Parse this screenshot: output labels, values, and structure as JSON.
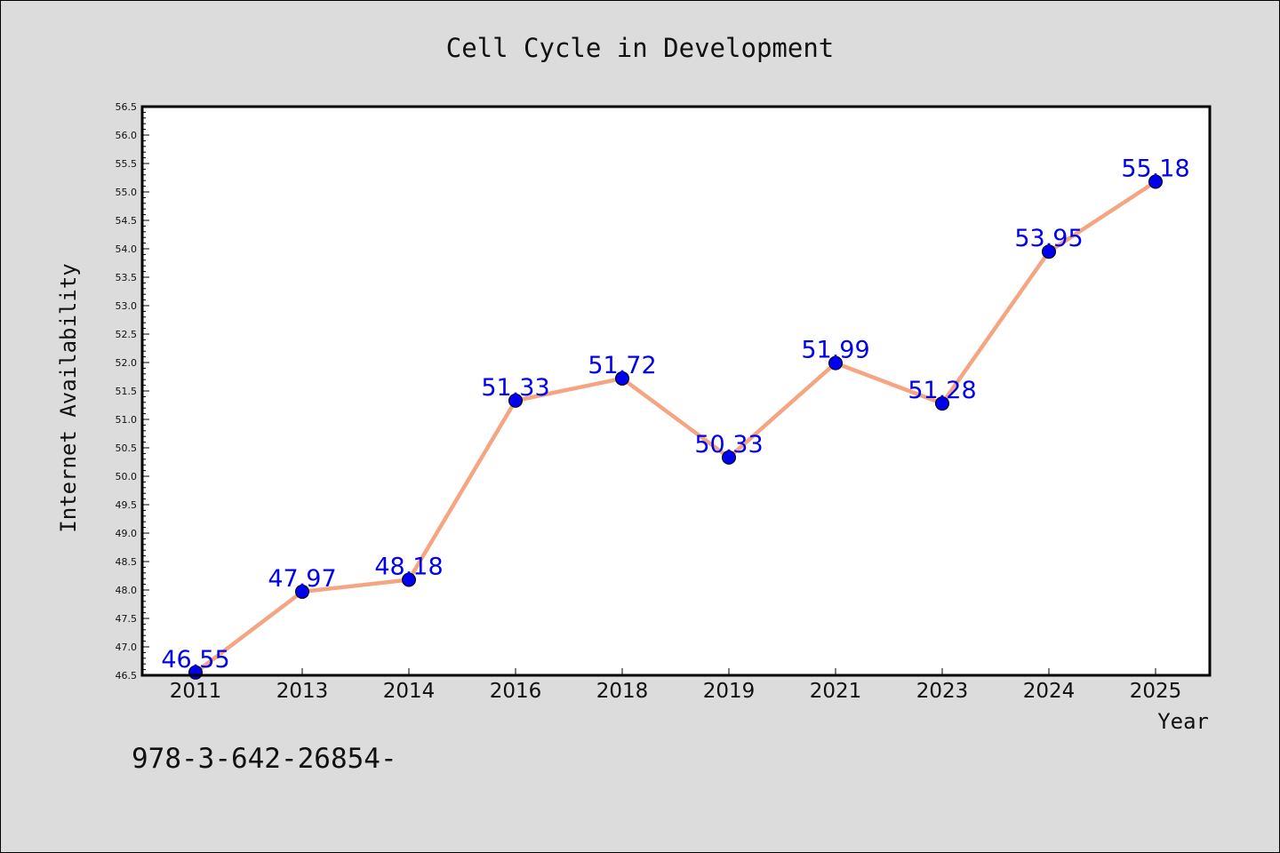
{
  "chart_data": {
    "type": "line",
    "title": "Cell Cycle in Development",
    "xlabel": "Year",
    "ylabel": "Internet Availability",
    "categories": [
      "2011",
      "2013",
      "2014",
      "2016",
      "2018",
      "2019",
      "2021",
      "2023",
      "2024",
      "2025"
    ],
    "series": [
      {
        "values": [
          46.55,
          47.97,
          48.18,
          51.33,
          51.72,
          50.33,
          51.99,
          51.28,
          53.95,
          55.18
        ],
        "line_color": "#f4a582",
        "marker_color": "#0000ee",
        "label_color": "#0000ee"
      }
    ],
    "ylim": [
      46.5,
      56.5
    ],
    "y_tick_step": 0.5,
    "grid": false,
    "legend": "none",
    "data_labels": true
  },
  "footer": {
    "text": "978-3-642-26854-"
  },
  "colors": {
    "background": "#dcdcdc",
    "plot_background": "#ffffff"
  }
}
